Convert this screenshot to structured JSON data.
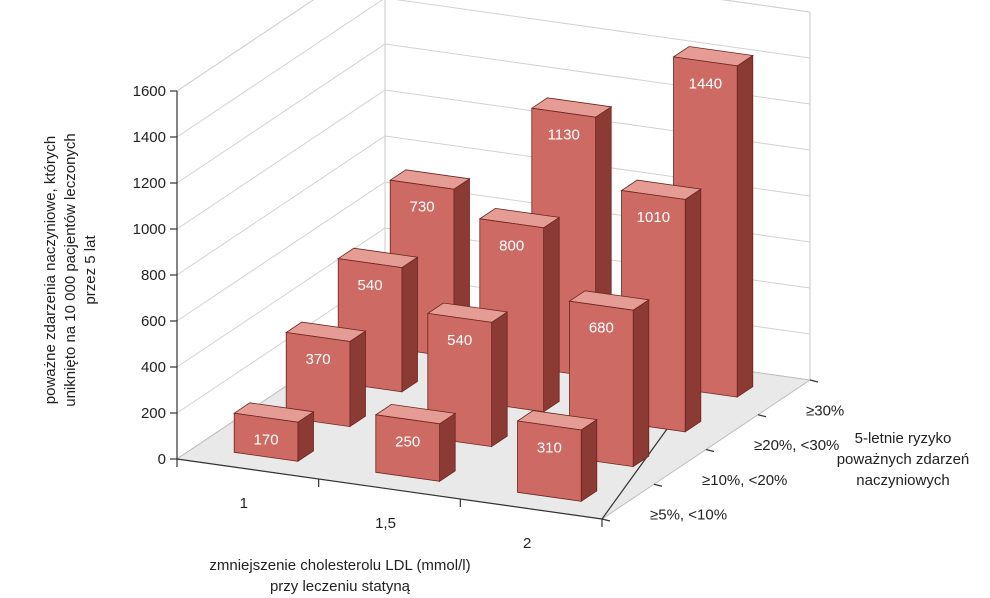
{
  "chart_data": {
    "type": "bar",
    "subtype": "3d-clustered",
    "title": "",
    "xlabel_lines": [
      "zmniejszenie cholesterolu LDL (mmol/l)",
      "przy leczeniu statyną"
    ],
    "ylabel_lines": [
      "poważne zdarzenia naczyniowe, których",
      "uniknięto na 10 000 pacjentów leczonych",
      "przez 5 lat"
    ],
    "zlabel_lines": [
      "5-letnie ryzyko",
      "poważnych zdarzeń",
      "naczyniowych"
    ],
    "x_categories": [
      "1",
      "1,5",
      "2"
    ],
    "z_categories": [
      "≥5%, <10%",
      "≥10%, <20%",
      "≥20%, <30%",
      "≥30%"
    ],
    "y_ticks": [
      "0",
      "200",
      "400",
      "600",
      "800",
      "1000",
      "1200",
      "1400",
      "1600"
    ],
    "ylim": [
      0,
      1600
    ],
    "grid": true,
    "colors": {
      "front": "#cd6a63",
      "top": "#e59c94",
      "side": "#8c3a34",
      "edge": "#6e2520"
    },
    "series": [
      {
        "name": "≥5%, <10%",
        "values": [
          170,
          250,
          310
        ]
      },
      {
        "name": "≥10%, <20%",
        "values": [
          370,
          540,
          680
        ]
      },
      {
        "name": "≥20%, <30%",
        "values": [
          540,
          800,
          1010
        ]
      },
      {
        "name": "≥30%",
        "values": [
          730,
          1130,
          1440
        ]
      }
    ]
  }
}
